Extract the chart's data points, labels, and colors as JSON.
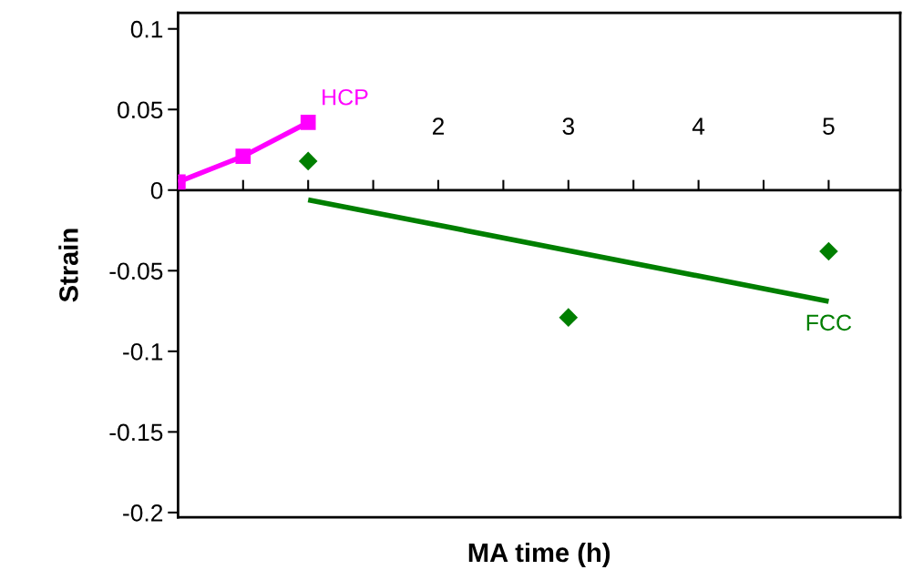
{
  "chart_data": {
    "type": "line",
    "xlabel": "MA time (h)",
    "ylabel": "Strain",
    "xlim": [
      0,
      5.55
    ],
    "ylim": [
      -0.203,
      0.11
    ],
    "xticks": [
      {
        "value": 0.5,
        "label": null
      },
      {
        "value": 1,
        "label": null
      },
      {
        "value": 1.5,
        "label": null
      },
      2,
      {
        "value": 2.5,
        "label": null
      },
      3,
      {
        "value": 3.5,
        "label": null
      },
      4,
      {
        "value": 4.5,
        "label": null
      },
      5
    ],
    "yticks": [
      0.1,
      0.05,
      0,
      -0.05,
      -0.1,
      -0.15,
      -0.2
    ],
    "grid": false,
    "legend": false,
    "line_style": "solid",
    "series": [
      {
        "name": "HCP",
        "marker": "square",
        "color": "#ff00ff",
        "x": [
          0,
          0.5,
          1
        ],
        "values": [
          0.005,
          0.021,
          0.042
        ]
      },
      {
        "type": "scatter",
        "marker": "diamond",
        "color": "#007f00",
        "x": [
          1,
          3,
          5
        ],
        "values": [
          0.018,
          -0.079,
          -0.038
        ]
      },
      {
        "name": "FCC",
        "marker": "none",
        "color": "#007f00",
        "x": [
          1,
          5
        ],
        "values": [
          -0.006,
          -0.069
        ]
      }
    ]
  }
}
